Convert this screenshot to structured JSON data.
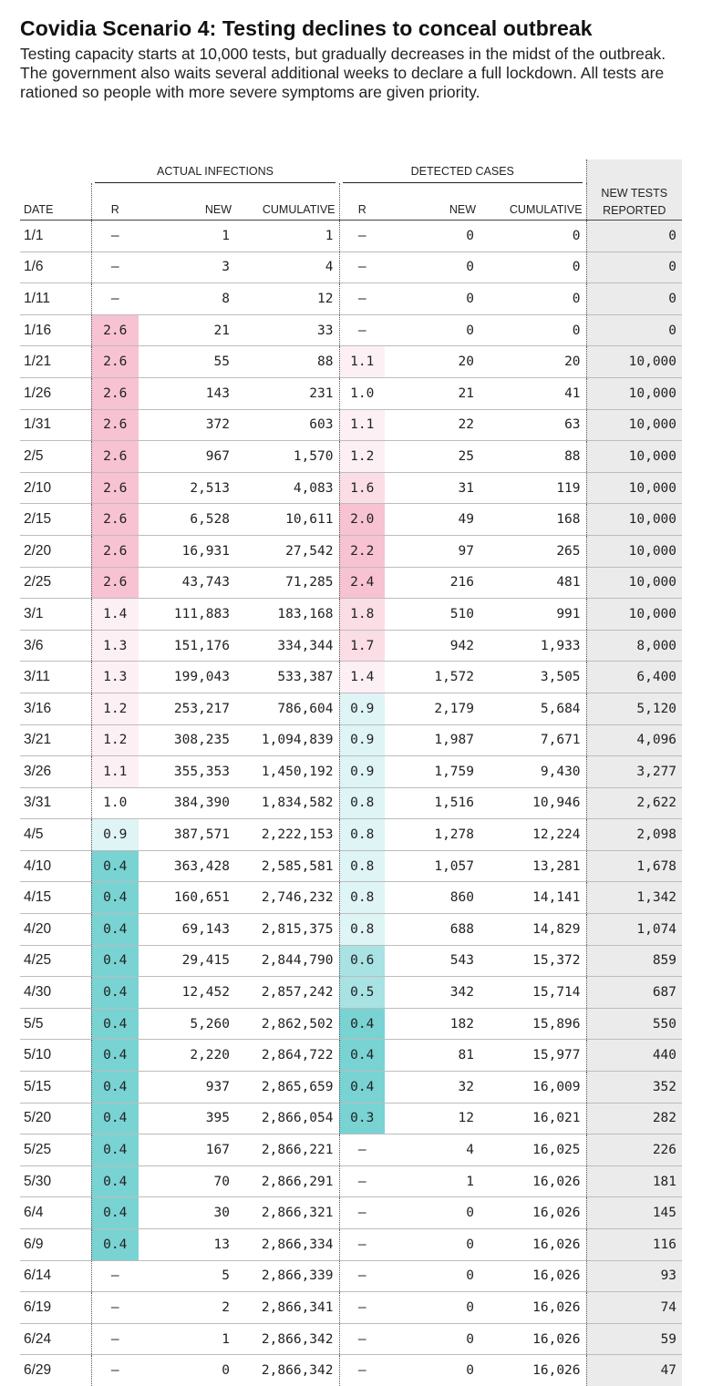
{
  "title": "Covidia Scenario 4: Testing declines to conceal outbreak",
  "subtitle": "Testing capacity starts at 10,000 tests, but gradually decreases in the midst of the outbreak. The government also waits several additional weeks to declare a full lockdown. All tests are rationed so people with more severe symptoms are given priority.",
  "headers": {
    "group_actual": "ACTUAL INFECTIONS",
    "group_detected": "DETECTED CASES",
    "date": "DATE",
    "r": "R",
    "new": "NEW",
    "cumulative": "CUMULATIVE",
    "tests_line1": "NEW TESTS",
    "tests_line2": "REPORTED"
  },
  "colors": {
    "pink_strong": "#f7c2d2",
    "pink_mid": "#fbdde6",
    "pink_light": "#fdf0f4",
    "teal_strong": "#79d3d3",
    "teal_mid": "#a8e2e2",
    "teal_light": "#dff4f4",
    "tests_bg": "#ebebeb"
  },
  "rows": [
    {
      "date": "1/1",
      "r_actual": "–",
      "new_actual": "1",
      "cum_actual": "1",
      "r_detected": "–",
      "new_detected": "0",
      "cum_detected": "0",
      "tests": "0"
    },
    {
      "date": "1/6",
      "r_actual": "–",
      "new_actual": "3",
      "cum_actual": "4",
      "r_detected": "–",
      "new_detected": "0",
      "cum_detected": "0",
      "tests": "0"
    },
    {
      "date": "1/11",
      "r_actual": "–",
      "new_actual": "8",
      "cum_actual": "12",
      "r_detected": "–",
      "new_detected": "0",
      "cum_detected": "0",
      "tests": "0"
    },
    {
      "date": "1/16",
      "r_actual": "2.6",
      "new_actual": "21",
      "cum_actual": "33",
      "r_detected": "–",
      "new_detected": "0",
      "cum_detected": "0",
      "tests": "0"
    },
    {
      "date": "1/21",
      "r_actual": "2.6",
      "new_actual": "55",
      "cum_actual": "88",
      "r_detected": "1.1",
      "new_detected": "20",
      "cum_detected": "20",
      "tests": "10,000"
    },
    {
      "date": "1/26",
      "r_actual": "2.6",
      "new_actual": "143",
      "cum_actual": "231",
      "r_detected": "1.0",
      "new_detected": "21",
      "cum_detected": "41",
      "tests": "10,000"
    },
    {
      "date": "1/31",
      "r_actual": "2.6",
      "new_actual": "372",
      "cum_actual": "603",
      "r_detected": "1.1",
      "new_detected": "22",
      "cum_detected": "63",
      "tests": "10,000"
    },
    {
      "date": "2/5",
      "r_actual": "2.6",
      "new_actual": "967",
      "cum_actual": "1,570",
      "r_detected": "1.2",
      "new_detected": "25",
      "cum_detected": "88",
      "tests": "10,000"
    },
    {
      "date": "2/10",
      "r_actual": "2.6",
      "new_actual": "2,513",
      "cum_actual": "4,083",
      "r_detected": "1.6",
      "new_detected": "31",
      "cum_detected": "119",
      "tests": "10,000"
    },
    {
      "date": "2/15",
      "r_actual": "2.6",
      "new_actual": "6,528",
      "cum_actual": "10,611",
      "r_detected": "2.0",
      "new_detected": "49",
      "cum_detected": "168",
      "tests": "10,000"
    },
    {
      "date": "2/20",
      "r_actual": "2.6",
      "new_actual": "16,931",
      "cum_actual": "27,542",
      "r_detected": "2.2",
      "new_detected": "97",
      "cum_detected": "265",
      "tests": "10,000"
    },
    {
      "date": "2/25",
      "r_actual": "2.6",
      "new_actual": "43,743",
      "cum_actual": "71,285",
      "r_detected": "2.4",
      "new_detected": "216",
      "cum_detected": "481",
      "tests": "10,000"
    },
    {
      "date": "3/1",
      "r_actual": "1.4",
      "new_actual": "111,883",
      "cum_actual": "183,168",
      "r_detected": "1.8",
      "new_detected": "510",
      "cum_detected": "991",
      "tests": "10,000"
    },
    {
      "date": "3/6",
      "r_actual": "1.3",
      "new_actual": "151,176",
      "cum_actual": "334,344",
      "r_detected": "1.7",
      "new_detected": "942",
      "cum_detected": "1,933",
      "tests": "8,000"
    },
    {
      "date": "3/11",
      "r_actual": "1.3",
      "new_actual": "199,043",
      "cum_actual": "533,387",
      "r_detected": "1.4",
      "new_detected": "1,572",
      "cum_detected": "3,505",
      "tests": "6,400"
    },
    {
      "date": "3/16",
      "r_actual": "1.2",
      "new_actual": "253,217",
      "cum_actual": "786,604",
      "r_detected": "0.9",
      "new_detected": "2,179",
      "cum_detected": "5,684",
      "tests": "5,120"
    },
    {
      "date": "3/21",
      "r_actual": "1.2",
      "new_actual": "308,235",
      "cum_actual": "1,094,839",
      "r_detected": "0.9",
      "new_detected": "1,987",
      "cum_detected": "7,671",
      "tests": "4,096"
    },
    {
      "date": "3/26",
      "r_actual": "1.1",
      "new_actual": "355,353",
      "cum_actual": "1,450,192",
      "r_detected": "0.9",
      "new_detected": "1,759",
      "cum_detected": "9,430",
      "tests": "3,277"
    },
    {
      "date": "3/31",
      "r_actual": "1.0",
      "new_actual": "384,390",
      "cum_actual": "1,834,582",
      "r_detected": "0.8",
      "new_detected": "1,516",
      "cum_detected": "10,946",
      "tests": "2,622"
    },
    {
      "date": "4/5",
      "r_actual": "0.9",
      "new_actual": "387,571",
      "cum_actual": "2,222,153",
      "r_detected": "0.8",
      "new_detected": "1,278",
      "cum_detected": "12,224",
      "tests": "2,098"
    },
    {
      "date": "4/10",
      "r_actual": "0.4",
      "new_actual": "363,428",
      "cum_actual": "2,585,581",
      "r_detected": "0.8",
      "new_detected": "1,057",
      "cum_detected": "13,281",
      "tests": "1,678"
    },
    {
      "date": "4/15",
      "r_actual": "0.4",
      "new_actual": "160,651",
      "cum_actual": "2,746,232",
      "r_detected": "0.8",
      "new_detected": "860",
      "cum_detected": "14,141",
      "tests": "1,342"
    },
    {
      "date": "4/20",
      "r_actual": "0.4",
      "new_actual": "69,143",
      "cum_actual": "2,815,375",
      "r_detected": "0.8",
      "new_detected": "688",
      "cum_detected": "14,829",
      "tests": "1,074"
    },
    {
      "date": "4/25",
      "r_actual": "0.4",
      "new_actual": "29,415",
      "cum_actual": "2,844,790",
      "r_detected": "0.6",
      "new_detected": "543",
      "cum_detected": "15,372",
      "tests": "859"
    },
    {
      "date": "4/30",
      "r_actual": "0.4",
      "new_actual": "12,452",
      "cum_actual": "2,857,242",
      "r_detected": "0.5",
      "new_detected": "342",
      "cum_detected": "15,714",
      "tests": "687"
    },
    {
      "date": "5/5",
      "r_actual": "0.4",
      "new_actual": "5,260",
      "cum_actual": "2,862,502",
      "r_detected": "0.4",
      "new_detected": "182",
      "cum_detected": "15,896",
      "tests": "550"
    },
    {
      "date": "5/10",
      "r_actual": "0.4",
      "new_actual": "2,220",
      "cum_actual": "2,864,722",
      "r_detected": "0.4",
      "new_detected": "81",
      "cum_detected": "15,977",
      "tests": "440"
    },
    {
      "date": "5/15",
      "r_actual": "0.4",
      "new_actual": "937",
      "cum_actual": "2,865,659",
      "r_detected": "0.4",
      "new_detected": "32",
      "cum_detected": "16,009",
      "tests": "352"
    },
    {
      "date": "5/20",
      "r_actual": "0.4",
      "new_actual": "395",
      "cum_actual": "2,866,054",
      "r_detected": "0.3",
      "new_detected": "12",
      "cum_detected": "16,021",
      "tests": "282"
    },
    {
      "date": "5/25",
      "r_actual": "0.4",
      "new_actual": "167",
      "cum_actual": "2,866,221",
      "r_detected": "–",
      "new_detected": "4",
      "cum_detected": "16,025",
      "tests": "226"
    },
    {
      "date": "5/30",
      "r_actual": "0.4",
      "new_actual": "70",
      "cum_actual": "2,866,291",
      "r_detected": "–",
      "new_detected": "1",
      "cum_detected": "16,026",
      "tests": "181"
    },
    {
      "date": "6/4",
      "r_actual": "0.4",
      "new_actual": "30",
      "cum_actual": "2,866,321",
      "r_detected": "–",
      "new_detected": "0",
      "cum_detected": "16,026",
      "tests": "145"
    },
    {
      "date": "6/9",
      "r_actual": "0.4",
      "new_actual": "13",
      "cum_actual": "2,866,334",
      "r_detected": "–",
      "new_detected": "0",
      "cum_detected": "16,026",
      "tests": "116"
    },
    {
      "date": "6/14",
      "r_actual": "–",
      "new_actual": "5",
      "cum_actual": "2,866,339",
      "r_detected": "–",
      "new_detected": "0",
      "cum_detected": "16,026",
      "tests": "93"
    },
    {
      "date": "6/19",
      "r_actual": "–",
      "new_actual": "2",
      "cum_actual": "2,866,341",
      "r_detected": "–",
      "new_detected": "0",
      "cum_detected": "16,026",
      "tests": "74"
    },
    {
      "date": "6/24",
      "r_actual": "–",
      "new_actual": "1",
      "cum_actual": "2,866,342",
      "r_detected": "–",
      "new_detected": "0",
      "cum_detected": "16,026",
      "tests": "59"
    },
    {
      "date": "6/29",
      "r_actual": "–",
      "new_actual": "0",
      "cum_actual": "2,866,342",
      "r_detected": "–",
      "new_detected": "0",
      "cum_detected": "16,026",
      "tests": "47"
    }
  ]
}
